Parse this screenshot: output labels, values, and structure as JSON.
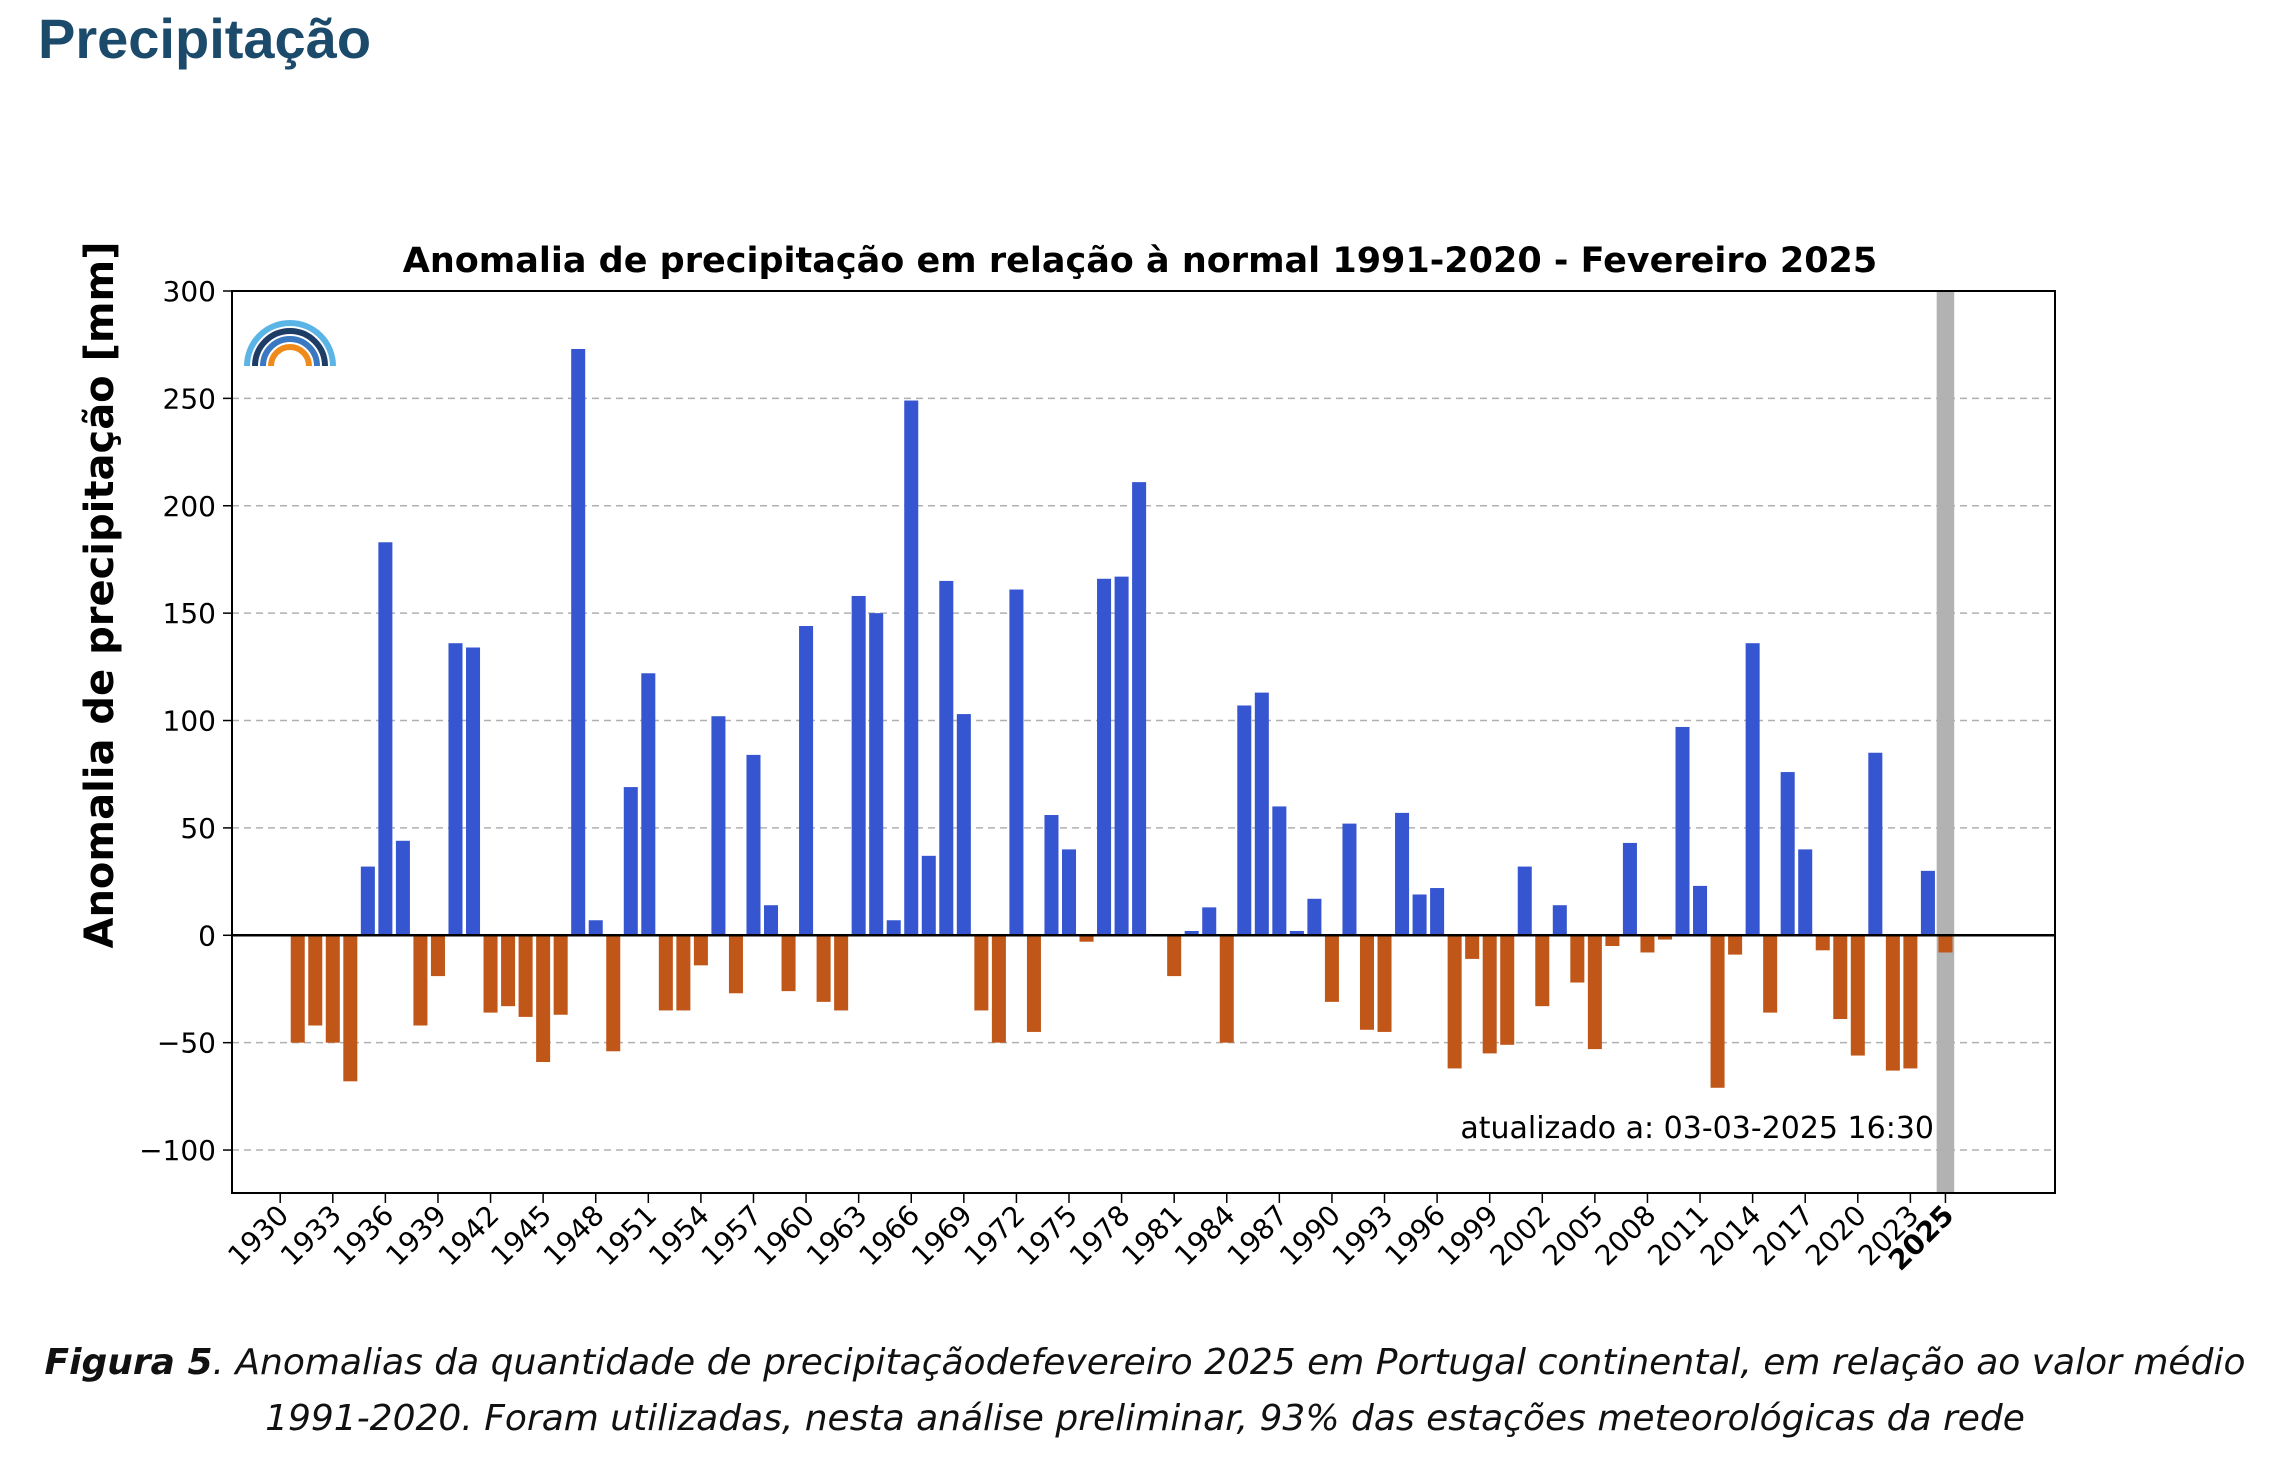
{
  "header": {
    "title": "Precipitação"
  },
  "caption": {
    "figure_label": "Figura 5",
    "text": ". Anomalias da quantidade de precipitaçãodefevereiro 2025 em Portugal continental, em relação ao valor médio 1991-2020. Foram utilizadas, nesta análise preliminar, 93% das estações meteorológicas da rede"
  },
  "colors": {
    "positive": "#3655d0",
    "negative": "#c05719",
    "highlight_band": "#b2b2b2",
    "title": "#1b4a6b"
  },
  "logo": {
    "icon": "weather-arcs-logo-icon"
  },
  "chart_data": {
    "type": "bar",
    "title": "Anomalia de precipitação em relação à normal 1991-2020 - Fevereiro 2025",
    "xlabel": "",
    "ylabel": "Anomalia de precipitação [mm]",
    "ylim": [
      -120,
      300
    ],
    "yticks": [
      -100,
      -50,
      0,
      50,
      100,
      150,
      200,
      250,
      300
    ],
    "xticks": [
      "1930",
      "1933",
      "1936",
      "1939",
      "1942",
      "1945",
      "1948",
      "1951",
      "1954",
      "1957",
      "1960",
      "1963",
      "1966",
      "1969",
      "1972",
      "1975",
      "1978",
      "1981",
      "1984",
      "1987",
      "1990",
      "1993",
      "1996",
      "1999",
      "2002",
      "2005",
      "2008",
      "2011",
      "2014",
      "2017",
      "2020",
      "2023",
      "2025"
    ],
    "highlight_year": "2025",
    "grid": "horizontal dashed",
    "annotation": "atualizado a: 03-03-2025 16:30",
    "x": [
      1931,
      1932,
      1933,
      1934,
      1935,
      1936,
      1937,
      1938,
      1939,
      1940,
      1941,
      1942,
      1943,
      1944,
      1945,
      1946,
      1947,
      1948,
      1949,
      1950,
      1951,
      1952,
      1953,
      1954,
      1955,
      1956,
      1957,
      1958,
      1959,
      1960,
      1961,
      1962,
      1963,
      1964,
      1965,
      1966,
      1967,
      1968,
      1969,
      1970,
      1971,
      1972,
      1973,
      1974,
      1975,
      1976,
      1977,
      1978,
      1979,
      1980,
      1981,
      1982,
      1983,
      1984,
      1985,
      1986,
      1987,
      1988,
      1989,
      1990,
      1991,
      1992,
      1993,
      1994,
      1995,
      1996,
      1997,
      1998,
      1999,
      2000,
      2001,
      2002,
      2003,
      2004,
      2005,
      2006,
      2007,
      2008,
      2009,
      2010,
      2011,
      2012,
      2013,
      2014,
      2015,
      2016,
      2017,
      2018,
      2019,
      2020,
      2021,
      2022,
      2023,
      2024,
      2025
    ],
    "values": [
      -50,
      -42,
      -50,
      -68,
      32,
      183,
      44,
      -42,
      -19,
      136,
      134,
      -36,
      -33,
      -38,
      -59,
      -37,
      273,
      7,
      -54,
      69,
      122,
      -35,
      -35,
      -14,
      102,
      -27,
      84,
      14,
      -26,
      144,
      -31,
      -35,
      158,
      150,
      7,
      249,
      37,
      165,
      103,
      -35,
      -50,
      161,
      -45,
      56,
      40,
      -3,
      166,
      167,
      211,
      0,
      -19,
      2,
      13,
      -50,
      107,
      113,
      60,
      2,
      17,
      -31,
      52,
      -44,
      -45,
      57,
      19,
      22,
      -62,
      -11,
      -55,
      -51,
      32,
      -33,
      14,
      -22,
      -53,
      -5,
      43,
      -8,
      -2,
      97,
      23,
      -71,
      -9,
      136,
      -36,
      76,
      40,
      -7,
      -39,
      -56,
      85,
      -63,
      -62,
      30,
      -8
    ]
  }
}
